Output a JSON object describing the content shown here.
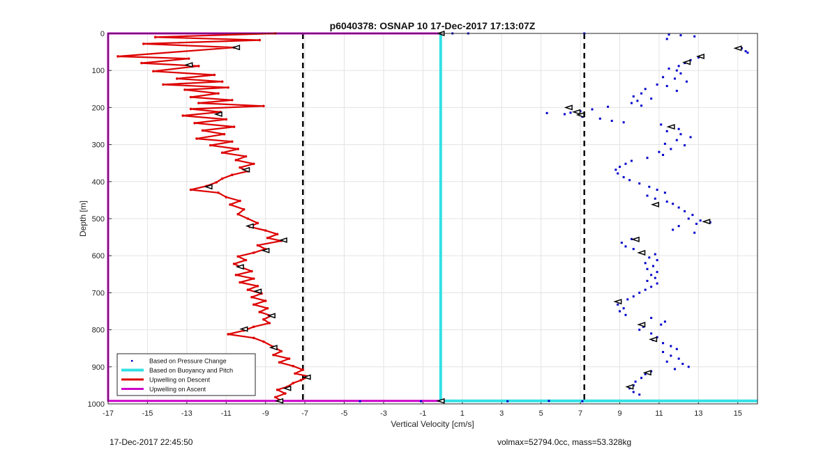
{
  "footer": {
    "timestamp": "17-Dec-2017 22:45:50",
    "info": "volmax=52794.0cc, mass=53.328kg"
  },
  "chart_data": {
    "type": "scatter",
    "title": "p6040378: OSNAP 10 17-Dec-2017 17:13:07Z",
    "xlabel": "Vertical Velocity [cm/s]",
    "ylabel": "Depth [m]",
    "xlim": [
      -17,
      16
    ],
    "ylim": [
      1000,
      0
    ],
    "y_reversed": true,
    "grid": true,
    "legend_position": "bottom-left",
    "xticks": [
      -17,
      -15,
      -13,
      -11,
      -9,
      -7,
      -5,
      -3,
      -1,
      1,
      3,
      5,
      7,
      9,
      11,
      13,
      15
    ],
    "yticks": [
      0,
      100,
      200,
      300,
      400,
      500,
      600,
      700,
      800,
      900,
      1000
    ],
    "colors": {
      "pressure": "#0000cc",
      "buoyancy": "#33e0e6",
      "descent": "#dd0000",
      "ascent": "#cc00cc",
      "threshold": "#000000"
    },
    "thresholds": [
      -7.1,
      7.2
    ],
    "series": [
      {
        "name": "Based on Pressure Change",
        "style": "dots",
        "points": [
          [
            0.5,
            0
          ],
          [
            1.3,
            0
          ],
          [
            7.2,
            0
          ],
          [
            11.5,
            3
          ],
          [
            12.1,
            5
          ],
          [
            12.8,
            8
          ],
          [
            11.4,
            15
          ],
          [
            15.2,
            40
          ],
          [
            15.4,
            48
          ],
          [
            15.5,
            52
          ],
          [
            13.0,
            65
          ],
          [
            12.6,
            72
          ],
          [
            12.3,
            80
          ],
          [
            12.0,
            88
          ],
          [
            11.5,
            95
          ],
          [
            11.9,
            100
          ],
          [
            12.1,
            108
          ],
          [
            11.2,
            118
          ],
          [
            11.8,
            122
          ],
          [
            12.4,
            130
          ],
          [
            10.9,
            138
          ],
          [
            11.4,
            142
          ],
          [
            10.3,
            150
          ],
          [
            11.9,
            155
          ],
          [
            10.1,
            162
          ],
          [
            9.7,
            170
          ],
          [
            10.6,
            176
          ],
          [
            9.9,
            182
          ],
          [
            9.6,
            188
          ],
          [
            10.1,
            195
          ],
          [
            8.4,
            198
          ],
          [
            7.6,
            205
          ],
          [
            7.0,
            210
          ],
          [
            6.5,
            214
          ],
          [
            6.2,
            218
          ],
          [
            5.3,
            215
          ],
          [
            7.1,
            225
          ],
          [
            8.0,
            230
          ],
          [
            8.6,
            236
          ],
          [
            9.2,
            240
          ],
          [
            11.1,
            246
          ],
          [
            11.6,
            252
          ],
          [
            12.0,
            258
          ],
          [
            11.4,
            264
          ],
          [
            12.1,
            272
          ],
          [
            12.6,
            280
          ],
          [
            11.9,
            288
          ],
          [
            11.3,
            298
          ],
          [
            12.3,
            302
          ],
          [
            11.6,
            312
          ],
          [
            11.0,
            320
          ],
          [
            11.2,
            328
          ],
          [
            10.4,
            336
          ],
          [
            9.6,
            344
          ],
          [
            9.3,
            352
          ],
          [
            9.0,
            360
          ],
          [
            8.8,
            368
          ],
          [
            8.9,
            378
          ],
          [
            9.2,
            388
          ],
          [
            9.5,
            396
          ],
          [
            10.0,
            405
          ],
          [
            10.5,
            414
          ],
          [
            10.9,
            422
          ],
          [
            11.3,
            430
          ],
          [
            10.4,
            438
          ],
          [
            10.8,
            446
          ],
          [
            11.4,
            454
          ],
          [
            11.7,
            460
          ],
          [
            12.0,
            470
          ],
          [
            12.3,
            480
          ],
          [
            12.7,
            490
          ],
          [
            12.5,
            500
          ],
          [
            13.1,
            505
          ],
          [
            13.6,
            510
          ],
          [
            12.9,
            514
          ],
          [
            12.0,
            520
          ],
          [
            11.7,
            530
          ],
          [
            12.8,
            538
          ],
          [
            9.6,
            555
          ],
          [
            9.1,
            565
          ],
          [
            9.3,
            575
          ],
          [
            9.7,
            582
          ],
          [
            10.2,
            590
          ],
          [
            10.8,
            596
          ],
          [
            10.5,
            605
          ],
          [
            10.9,
            612
          ],
          [
            10.3,
            620
          ],
          [
            10.7,
            628
          ],
          [
            10.4,
            636
          ],
          [
            10.9,
            644
          ],
          [
            10.6,
            652
          ],
          [
            10.8,
            660
          ],
          [
            10.4,
            668
          ],
          [
            10.9,
            675
          ],
          [
            10.6,
            684
          ],
          [
            10.3,
            692
          ],
          [
            10.0,
            700
          ],
          [
            9.7,
            710
          ],
          [
            9.4,
            718
          ],
          [
            9.0,
            724
          ],
          [
            8.9,
            732
          ],
          [
            9.2,
            742
          ],
          [
            9.0,
            750
          ],
          [
            9.3,
            760
          ],
          [
            10.6,
            768
          ],
          [
            11.3,
            778
          ],
          [
            11.1,
            786
          ],
          [
            10.2,
            792
          ],
          [
            10.0,
            800
          ],
          [
            10.6,
            810
          ],
          [
            10.9,
            820
          ],
          [
            10.7,
            828
          ],
          [
            11.2,
            836
          ],
          [
            11.6,
            844
          ],
          [
            11.9,
            852
          ],
          [
            11.2,
            860
          ],
          [
            11.6,
            870
          ],
          [
            12.0,
            878
          ],
          [
            11.4,
            886
          ],
          [
            12.2,
            892
          ],
          [
            12.5,
            900
          ],
          [
            11.8,
            906
          ],
          [
            10.6,
            912
          ],
          [
            10.3,
            920
          ],
          [
            10.1,
            930
          ],
          [
            9.8,
            940
          ],
          [
            9.7,
            950
          ],
          [
            9.5,
            958
          ],
          [
            9.7,
            968
          ],
          [
            10.0,
            975
          ],
          [
            -4.2,
            993
          ],
          [
            -1.1,
            993
          ],
          [
            3.3,
            993
          ],
          [
            5.4,
            992
          ],
          [
            7.1,
            993
          ]
        ]
      },
      {
        "name": "Based on Buoyancy and Pitch",
        "style": "line",
        "points": [
          [
            -0.1,
            0
          ],
          [
            -0.1,
            992
          ],
          [
            16,
            992
          ]
        ]
      },
      {
        "name": "Upwelling on Descent",
        "style": "line",
        "points": [
          [
            -8.5,
            0
          ],
          [
            -14.6,
            10
          ],
          [
            -9.3,
            18
          ],
          [
            -15.2,
            28
          ],
          [
            -10.6,
            38
          ],
          [
            -16.5,
            62
          ],
          [
            -12.9,
            68
          ],
          [
            -15.3,
            80
          ],
          [
            -12.4,
            88
          ],
          [
            -14.7,
            102
          ],
          [
            -11.6,
            112
          ],
          [
            -13.5,
            122
          ],
          [
            -11.2,
            130
          ],
          [
            -14.2,
            138
          ],
          [
            -10.9,
            146
          ],
          [
            -13.1,
            152
          ],
          [
            -11.4,
            162
          ],
          [
            -12.8,
            172
          ],
          [
            -10.7,
            180
          ],
          [
            -12.4,
            188
          ],
          [
            -9.1,
            196
          ],
          [
            -12.8,
            204
          ],
          [
            -11.3,
            212
          ],
          [
            -13.2,
            222
          ],
          [
            -11.0,
            232
          ],
          [
            -12.6,
            242
          ],
          [
            -10.6,
            252
          ],
          [
            -12.2,
            262
          ],
          [
            -11.1,
            272
          ],
          [
            -12.5,
            284
          ],
          [
            -10.7,
            292
          ],
          [
            -11.8,
            302
          ],
          [
            -10.4,
            312
          ],
          [
            -11.2,
            322
          ],
          [
            -10.0,
            332
          ],
          [
            -10.5,
            342
          ],
          [
            -9.6,
            352
          ],
          [
            -10.3,
            362
          ],
          [
            -9.9,
            372
          ],
          [
            -10.7,
            382
          ],
          [
            -11.2,
            392
          ],
          [
            -11.5,
            402
          ],
          [
            -12.0,
            412
          ],
          [
            -12.8,
            422
          ],
          [
            -11.4,
            430
          ],
          [
            -11.0,
            442
          ],
          [
            -10.3,
            452
          ],
          [
            -10.8,
            462
          ],
          [
            -10.1,
            475
          ],
          [
            -10.4,
            488
          ],
          [
            -9.9,
            500
          ],
          [
            -9.4,
            512
          ],
          [
            -9.8,
            522
          ],
          [
            -9.0,
            532
          ],
          [
            -8.4,
            542
          ],
          [
            -8.9,
            552
          ],
          [
            -8.2,
            560
          ],
          [
            -9.4,
            572
          ],
          [
            -9.0,
            582
          ],
          [
            -9.6,
            592
          ],
          [
            -10.4,
            602
          ],
          [
            -10.0,
            612
          ],
          [
            -10.6,
            622
          ],
          [
            -10.2,
            632
          ],
          [
            -9.7,
            642
          ],
          [
            -10.5,
            652
          ],
          [
            -9.6,
            662
          ],
          [
            -10.3,
            672
          ],
          [
            -9.4,
            682
          ],
          [
            -9.9,
            692
          ],
          [
            -9.2,
            702
          ],
          [
            -9.7,
            712
          ],
          [
            -9.0,
            722
          ],
          [
            -9.6,
            732
          ],
          [
            -8.9,
            742
          ],
          [
            -9.3,
            752
          ],
          [
            -8.7,
            762
          ],
          [
            -9.1,
            772
          ],
          [
            -8.8,
            782
          ],
          [
            -9.6,
            792
          ],
          [
            -10.1,
            802
          ],
          [
            -10.9,
            812
          ],
          [
            -9.6,
            822
          ],
          [
            -9.1,
            832
          ],
          [
            -8.6,
            846
          ],
          [
            -8.2,
            858
          ],
          [
            -8.6,
            868
          ],
          [
            -7.8,
            878
          ],
          [
            -8.3,
            888
          ],
          [
            -7.6,
            898
          ],
          [
            -7.1,
            908
          ],
          [
            -7.5,
            918
          ],
          [
            -6.8,
            926
          ],
          [
            -7.2,
            936
          ],
          [
            -7.6,
            944
          ],
          [
            -7.9,
            954
          ],
          [
            -8.4,
            962
          ],
          [
            -8.0,
            972
          ],
          [
            -8.5,
            982
          ],
          [
            -8.2,
            992
          ]
        ]
      },
      {
        "name": "Upwelling on Ascent",
        "style": "line",
        "points": [
          [
            -17,
            0
          ],
          [
            -0.1,
            0
          ],
          [
            -17,
            0
          ],
          [
            -17,
            992
          ],
          [
            -0.1,
            992
          ]
        ]
      }
    ],
    "markers": [
      [
        -10.5,
        38
      ],
      [
        -12.9,
        85
      ],
      [
        -11.4,
        218
      ],
      [
        -10.0,
        368
      ],
      [
        -11.9,
        414
      ],
      [
        -9.8,
        520
      ],
      [
        -8.1,
        558
      ],
      [
        -9.0,
        586
      ],
      [
        -10.3,
        630
      ],
      [
        -9.4,
        696
      ],
      [
        -8.7,
        762
      ],
      [
        -10.1,
        798
      ],
      [
        -8.6,
        848
      ],
      [
        -6.9,
        928
      ],
      [
        -7.9,
        958
      ],
      [
        -8.3,
        992
      ],
      [
        -0.1,
        0
      ],
      [
        -0.1,
        992
      ],
      [
        15.0,
        40
      ],
      [
        13.1,
        62
      ],
      [
        12.4,
        78
      ],
      [
        6.4,
        200
      ],
      [
        6.8,
        212
      ],
      [
        7.0,
        220
      ],
      [
        11.6,
        252
      ],
      [
        10.8,
        462
      ],
      [
        13.4,
        508
      ],
      [
        9.8,
        556
      ],
      [
        10.1,
        592
      ],
      [
        8.9,
        724
      ],
      [
        10.1,
        786
      ],
      [
        10.7,
        826
      ],
      [
        10.4,
        916
      ],
      [
        9.5,
        954
      ]
    ]
  }
}
